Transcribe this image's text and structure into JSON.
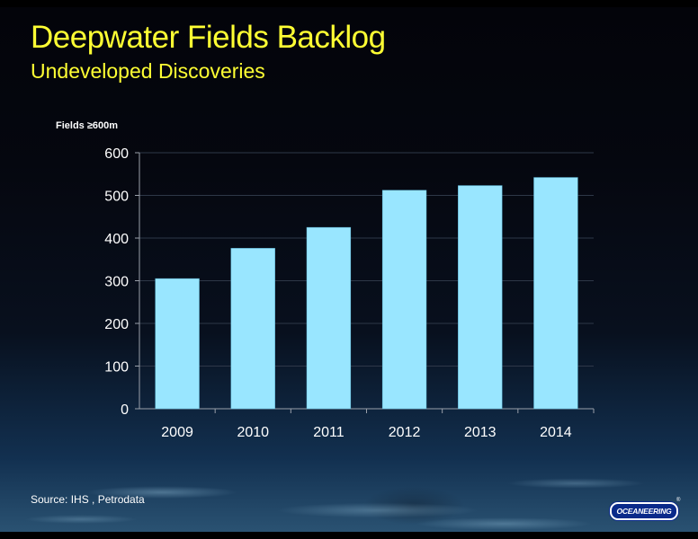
{
  "title": "Deepwater Fields Backlog",
  "subtitle": "Undeveloped Discoveries",
  "source": "Source:  IHS , Petrodata",
  "logo_text": "OCEANEERING",
  "logo_mark": "®",
  "colors": {
    "bar": "#99e6ff",
    "title": "#ffff33",
    "text": "#ffffff"
  },
  "chart_data": {
    "type": "bar",
    "title": "Deepwater Fields Backlog",
    "subtitle": "Undeveloped Discoveries",
    "ylabel": "Fields ≥600m",
    "xlabel": "",
    "categories": [
      "2009",
      "2010",
      "2011",
      "2012",
      "2013",
      "2014"
    ],
    "values": [
      305,
      376,
      425,
      512,
      523,
      542
    ],
    "ylim": [
      0,
      600
    ],
    "yticks": [
      0,
      100,
      200,
      300,
      400,
      500,
      600
    ],
    "grid": true,
    "legend": "none"
  }
}
